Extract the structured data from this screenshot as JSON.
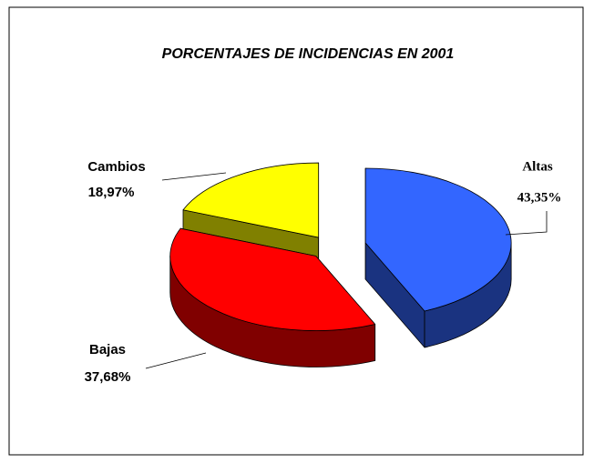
{
  "chart_data": {
    "type": "pie",
    "title": "PORCENTAJES DE INCIDENCIAS EN 2001",
    "categories": [
      "Altas",
      "Bajas",
      "Cambios"
    ],
    "values": [
      43.35,
      37.68,
      18.97
    ],
    "value_labels": [
      "43,35%",
      "37,68%",
      "18,97%"
    ],
    "colors": [
      "#3366ff",
      "#ff0000",
      "#ffff00"
    ]
  }
}
